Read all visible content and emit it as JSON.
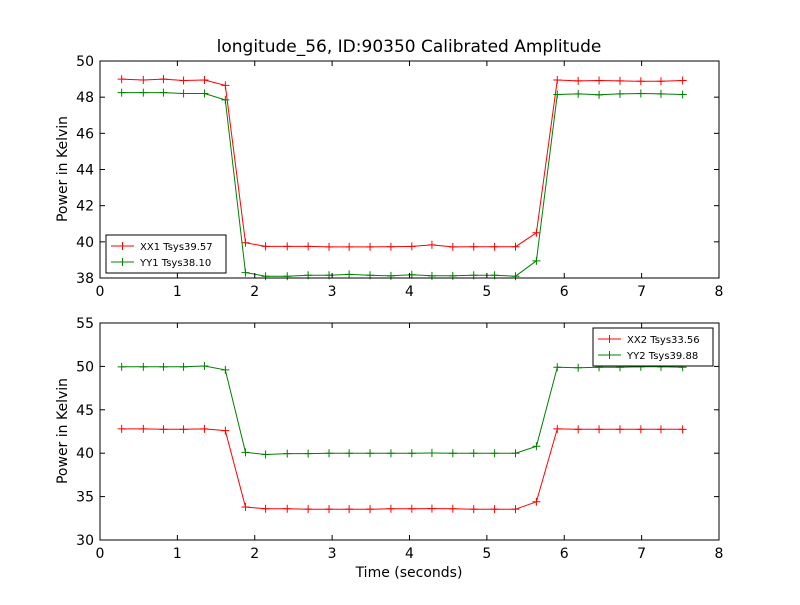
{
  "chart_data": [
    {
      "type": "line",
      "title": "longitude_56, ID:90350 Calibrated Amplitude",
      "xlabel": "",
      "ylabel": "Power in Kelvin",
      "xlim": [
        0,
        8
      ],
      "ylim": [
        38,
        50
      ],
      "xticks": [
        0,
        1,
        2,
        3,
        4,
        5,
        6,
        7,
        8
      ],
      "yticks": [
        38,
        40,
        42,
        44,
        46,
        48,
        50
      ],
      "grid": false,
      "legend_position": "lower-left",
      "x": [
        0.28,
        0.56,
        0.82,
        1.08,
        1.35,
        1.62,
        1.88,
        2.14,
        2.42,
        2.69,
        2.96,
        3.22,
        3.49,
        3.76,
        4.03,
        4.29,
        4.56,
        4.83,
        5.1,
        5.37,
        5.64,
        5.91,
        6.18,
        6.45,
        6.72,
        6.99,
        7.25,
        7.53
      ],
      "series": [
        {
          "name": "XX1 Tsys39.57",
          "color": "#ff0000",
          "values": [
            49.0,
            48.95,
            49.0,
            48.92,
            48.95,
            48.65,
            39.95,
            39.75,
            39.75,
            39.75,
            39.72,
            39.72,
            39.72,
            39.73,
            39.75,
            39.83,
            39.72,
            39.73,
            39.73,
            39.73,
            40.5,
            48.95,
            48.9,
            48.92,
            48.9,
            48.88,
            48.88,
            48.92
          ]
        },
        {
          "name": "YY1 Tsys38.10",
          "color": "#008000",
          "values": [
            48.25,
            48.25,
            48.25,
            48.2,
            48.2,
            47.85,
            38.3,
            38.1,
            38.1,
            38.15,
            38.15,
            38.2,
            38.15,
            38.12,
            38.18,
            38.12,
            38.12,
            38.15,
            38.15,
            38.1,
            38.95,
            48.15,
            48.18,
            48.13,
            48.18,
            48.2,
            48.18,
            48.15
          ]
        }
      ]
    },
    {
      "type": "line",
      "title": "",
      "xlabel": "Time (seconds)",
      "ylabel": "Power in Kelvin",
      "xlim": [
        0,
        8
      ],
      "ylim": [
        30,
        55
      ],
      "xticks": [
        0,
        1,
        2,
        3,
        4,
        5,
        6,
        7,
        8
      ],
      "yticks": [
        30,
        35,
        40,
        45,
        50,
        55
      ],
      "grid": false,
      "legend_position": "upper-right",
      "x": [
        0.28,
        0.56,
        0.82,
        1.08,
        1.35,
        1.62,
        1.88,
        2.14,
        2.42,
        2.69,
        2.96,
        3.22,
        3.49,
        3.76,
        4.03,
        4.29,
        4.56,
        4.83,
        5.1,
        5.37,
        5.64,
        5.91,
        6.18,
        6.45,
        6.72,
        6.99,
        7.25,
        7.53
      ],
      "series": [
        {
          "name": "XX2 Tsys33.56",
          "color": "#ff0000",
          "values": [
            42.8,
            42.8,
            42.75,
            42.75,
            42.8,
            42.6,
            33.8,
            33.6,
            33.6,
            33.55,
            33.55,
            33.55,
            33.55,
            33.6,
            33.6,
            33.62,
            33.6,
            33.55,
            33.55,
            33.55,
            34.4,
            42.8,
            42.75,
            42.75,
            42.75,
            42.75,
            42.75,
            42.75
          ]
        },
        {
          "name": "YY2 Tsys39.88",
          "color": "#008000",
          "values": [
            49.95,
            49.95,
            49.95,
            49.95,
            50.05,
            49.6,
            40.1,
            39.85,
            39.95,
            39.95,
            40.0,
            40.0,
            40.0,
            40.0,
            40.0,
            40.02,
            40.0,
            40.0,
            40.0,
            40.0,
            40.8,
            49.9,
            49.85,
            49.9,
            49.9,
            49.95,
            49.95,
            49.9
          ]
        }
      ]
    }
  ]
}
